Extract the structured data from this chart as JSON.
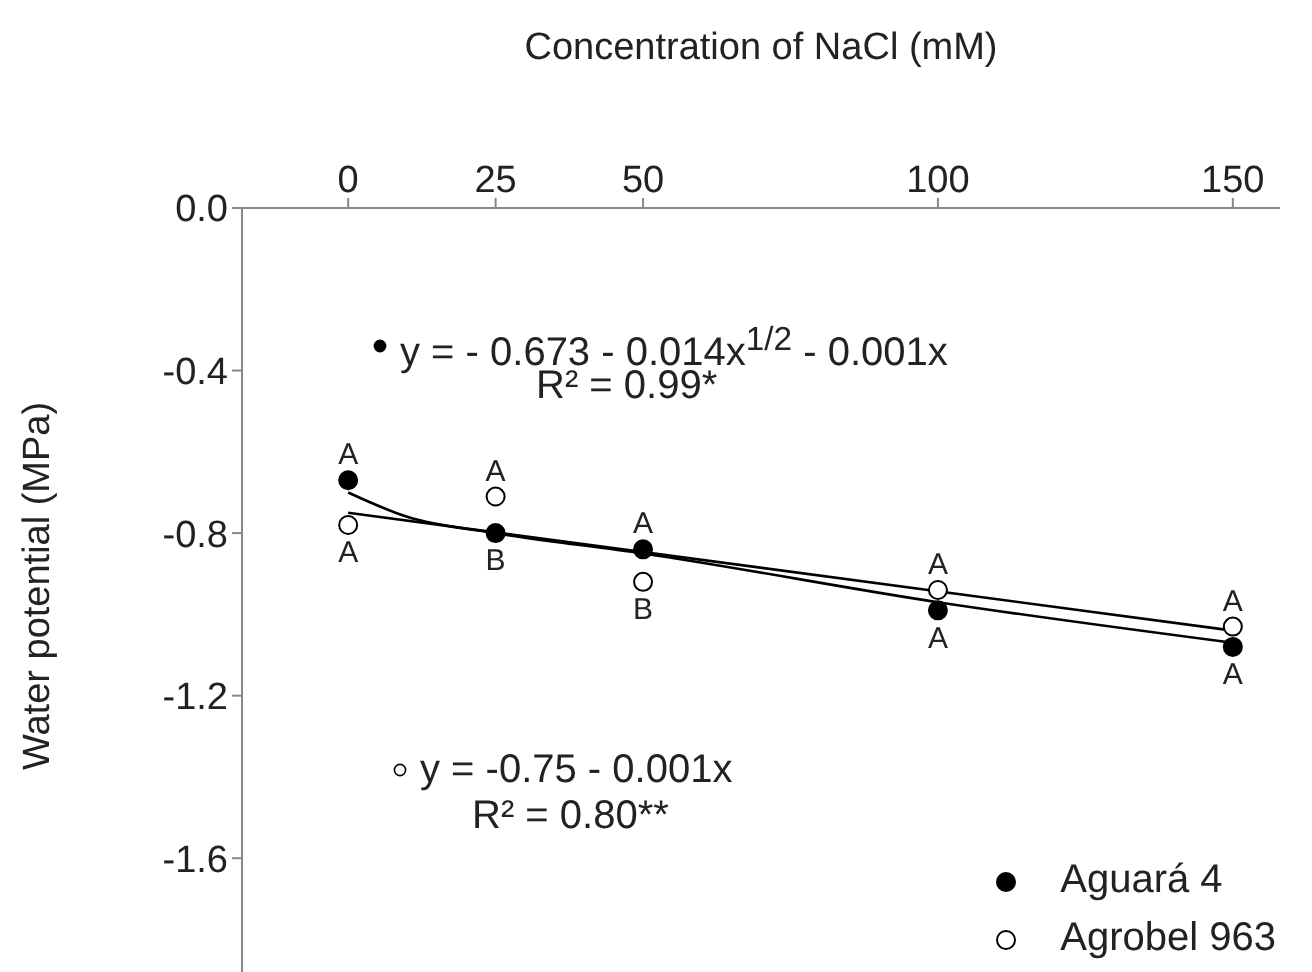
{
  "chart_data": {
    "type": "scatter",
    "xlabel": "Concentration of NaCl (mM)",
    "ylabel": "Water potential (MPa)",
    "x": [
      0,
      25,
      50,
      100,
      150
    ],
    "series": [
      {
        "name": "Aguará 4",
        "color": "#000000",
        "marker": "circle",
        "values": [
          -0.67,
          -0.8,
          -0.84,
          -0.99,
          -1.08
        ]
      },
      {
        "name": "Agrobel 963",
        "color": "#ffffff",
        "marker": "circle",
        "values": [
          -0.78,
          -0.71,
          -0.92,
          -0.94,
          -1.03
        ]
      },
      {
        "type": "line",
        "color": "#000000",
        "x": [
          0,
          10,
          25,
          50,
          100,
          150
        ],
        "values": [
          -0.7,
          -0.76,
          -0.8,
          -0.85,
          -0.97,
          -1.07
        ]
      },
      {
        "type": "line",
        "color": "#000000",
        "x": [
          0,
          150
        ],
        "values": [
          -0.75,
          -1.04
        ]
      }
    ],
    "xlim": [
      -18,
      158
    ],
    "xticks": [
      0,
      25,
      50,
      100,
      150
    ],
    "ylim": [
      -1.88,
      0
    ],
    "yticks": [
      {
        "value": 0,
        "label": "0.0"
      },
      -0.4,
      -0.8,
      -1.2,
      -1.6
    ],
    "grid": false,
    "legend": "bottom right",
    "annotations": [
      "y = - 0.673 - 0.014x$^{1/2}$ - 0.001x",
      "R² = 0.99*",
      "y = -0.75 - 0.001x",
      "R² = 0.80**",
      {
        "text": "A",
        "x": 0,
        "y": -0.67
      },
      {
        "text": "A",
        "x": 25,
        "y": -0.71
      },
      {
        "text": "A",
        "x": 0,
        "y": -0.78
      },
      {
        "text": "B",
        "x": 25,
        "y": -0.8
      },
      {
        "text": "A",
        "x": 50,
        "y": -0.84
      },
      {
        "text": "B",
        "x": 50,
        "y": -0.92
      },
      {
        "text": "A",
        "x": 100,
        "y": -0.94
      },
      {
        "text": "A",
        "x": 100,
        "y": -0.99
      },
      {
        "text": "A",
        "x": 150,
        "y": -1.03
      },
      {
        "text": "A",
        "x": 150,
        "y": -1.08
      }
    ]
  }
}
